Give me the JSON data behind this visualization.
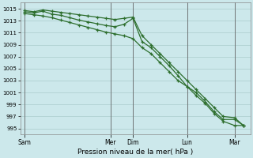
{
  "title": "",
  "xlabel": "Pression niveau de la mer( hPa )",
  "ylabel": "",
  "background_color": "#cce8eb",
  "grid_color": "#aacccc",
  "line_color": "#2d6e2d",
  "ylim": [
    994,
    1016
  ],
  "yticks": [
    995,
    997,
    999,
    1001,
    1003,
    1005,
    1007,
    1009,
    1011,
    1013,
    1015
  ],
  "day_labels": [
    "Sam",
    "Mer",
    "Dim",
    "Lun",
    "Mar"
  ],
  "day_positions": [
    0.0,
    0.38,
    0.48,
    0.72,
    0.93
  ],
  "vline_positions": [
    0.0,
    0.38,
    0.48,
    0.72,
    0.93
  ],
  "line1_x": [
    0.0,
    0.04,
    0.08,
    0.12,
    0.16,
    0.2,
    0.24,
    0.28,
    0.32,
    0.36,
    0.4,
    0.44,
    0.48,
    0.52,
    0.56,
    0.6,
    0.64,
    0.68,
    0.72,
    0.76,
    0.8,
    0.84,
    0.88,
    0.93,
    0.97
  ],
  "line1_y": [
    1014.7,
    1014.5,
    1014.8,
    1014.6,
    1014.4,
    1014.2,
    1014.0,
    1013.8,
    1013.6,
    1013.4,
    1013.2,
    1013.4,
    1013.6,
    1010.5,
    1009.0,
    1007.5,
    1006.0,
    1004.5,
    1003.0,
    1001.5,
    1000.0,
    998.5,
    997.0,
    996.8,
    995.5
  ],
  "line2_x": [
    0.0,
    0.04,
    0.08,
    0.12,
    0.16,
    0.2,
    0.24,
    0.28,
    0.32,
    0.36,
    0.4,
    0.44,
    0.48,
    0.52,
    0.56,
    0.6,
    0.64,
    0.68,
    0.72,
    0.76,
    0.8,
    0.84,
    0.88,
    0.93,
    0.97
  ],
  "line2_y": [
    1014.5,
    1014.3,
    1014.6,
    1014.1,
    1013.9,
    1013.5,
    1013.1,
    1012.8,
    1012.5,
    1012.2,
    1012.0,
    1012.4,
    1013.4,
    1009.5,
    1008.5,
    1007.0,
    1005.5,
    1003.8,
    1002.0,
    1001.0,
    999.5,
    997.8,
    996.5,
    996.5,
    995.5
  ],
  "line3_x": [
    0.0,
    0.04,
    0.08,
    0.12,
    0.16,
    0.2,
    0.24,
    0.28,
    0.32,
    0.36,
    0.4,
    0.44,
    0.48,
    0.52,
    0.56,
    0.6,
    0.64,
    0.68,
    0.72,
    0.76,
    0.8,
    0.84,
    0.88,
    0.93,
    0.97
  ],
  "line3_y": [
    1014.2,
    1014.0,
    1013.8,
    1013.5,
    1013.1,
    1012.7,
    1012.3,
    1011.9,
    1011.5,
    1011.1,
    1010.8,
    1010.5,
    1010.0,
    1008.5,
    1007.5,
    1006.0,
    1004.5,
    1003.0,
    1002.0,
    1000.5,
    999.2,
    997.5,
    996.2,
    995.5,
    995.5
  ]
}
